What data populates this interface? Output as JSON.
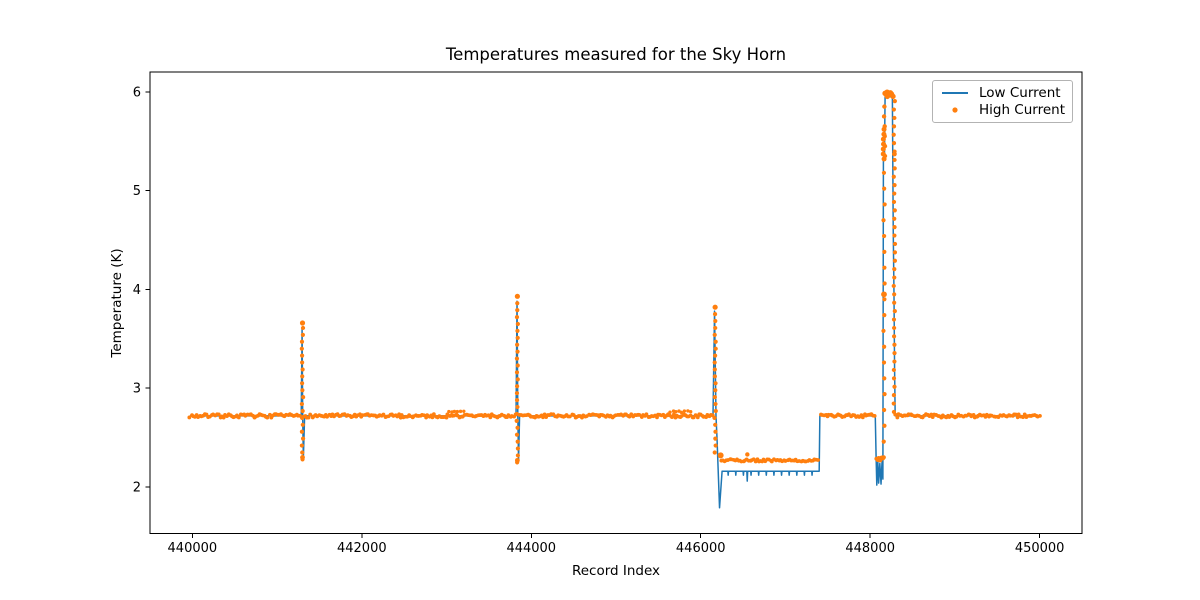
{
  "chart_data": {
    "type": "line+scatter",
    "title": "Temperatures measured for the Sky Horn",
    "xlabel": "Record Index",
    "ylabel": "Temperature (K)",
    "xlim": [
      439500,
      450500
    ],
    "ylim": [
      1.53,
      6.2
    ],
    "xticks": [
      440000,
      442000,
      444000,
      446000,
      448000,
      450000
    ],
    "yticks": [
      2,
      3,
      4,
      5,
      6
    ],
    "grid": false,
    "legend": {
      "position": "upper right",
      "entries": [
        {
          "label": "Low Current",
          "color": "#1f77b4",
          "marker": "line"
        },
        {
          "label": "High Current",
          "color": "#ff7f0e",
          "marker": "dot"
        }
      ]
    },
    "series": [
      {
        "name": "Low Current",
        "type": "line",
        "color": "#1f77b4",
        "linewidth": 1.5,
        "points": [
          [
            439970,
            2.72
          ],
          [
            441285,
            2.72
          ],
          [
            441295,
            3.6
          ],
          [
            441302,
            2.72
          ],
          [
            441310,
            2.29
          ],
          [
            441325,
            2.72
          ],
          [
            443820,
            2.72
          ],
          [
            443832,
            3.88
          ],
          [
            443841,
            2.72
          ],
          [
            443850,
            2.27
          ],
          [
            443862,
            2.72
          ],
          [
            446145,
            2.72
          ],
          [
            446163,
            3.78
          ],
          [
            446180,
            2.72
          ],
          [
            446192,
            2.5
          ],
          [
            446222,
            1.79
          ],
          [
            446252,
            2.16
          ],
          [
            446320,
            2.16
          ],
          [
            446324,
            2.12
          ],
          [
            446328,
            2.16
          ],
          [
            446410,
            2.16
          ],
          [
            446414,
            2.12
          ],
          [
            446418,
            2.16
          ],
          [
            446500,
            2.16
          ],
          [
            446504,
            2.12
          ],
          [
            446508,
            2.16
          ],
          [
            446544,
            2.16
          ],
          [
            446549,
            2.06
          ],
          [
            446554,
            2.16
          ],
          [
            446590,
            2.16
          ],
          [
            446594,
            2.12
          ],
          [
            446598,
            2.16
          ],
          [
            446680,
            2.16
          ],
          [
            446684,
            2.12
          ],
          [
            446688,
            2.16
          ],
          [
            446770,
            2.16
          ],
          [
            446774,
            2.12
          ],
          [
            446778,
            2.16
          ],
          [
            446860,
            2.16
          ],
          [
            446864,
            2.12
          ],
          [
            446868,
            2.16
          ],
          [
            446950,
            2.16
          ],
          [
            446954,
            2.12
          ],
          [
            446958,
            2.16
          ],
          [
            447040,
            2.16
          ],
          [
            447044,
            2.12
          ],
          [
            447048,
            2.16
          ],
          [
            447130,
            2.16
          ],
          [
            447134,
            2.12
          ],
          [
            447138,
            2.16
          ],
          [
            447220,
            2.16
          ],
          [
            447224,
            2.12
          ],
          [
            447228,
            2.16
          ],
          [
            447310,
            2.16
          ],
          [
            447314,
            2.12
          ],
          [
            447318,
            2.16
          ],
          [
            447398,
            2.16
          ],
          [
            447406,
            2.72
          ],
          [
            448060,
            2.72
          ],
          [
            448070,
            2.3
          ],
          [
            448078,
            2.02
          ],
          [
            448090,
            2.26
          ],
          [
            448100,
            2.04
          ],
          [
            448114,
            2.24
          ],
          [
            448128,
            2.03
          ],
          [
            448140,
            2.26
          ],
          [
            448150,
            2.08
          ],
          [
            448156,
            5.3
          ],
          [
            448163,
            5.4
          ],
          [
            448168,
            5.32
          ],
          [
            448176,
            5.95
          ],
          [
            448262,
            5.95
          ],
          [
            448272,
            4.6
          ],
          [
            448281,
            3.95
          ],
          [
            448288,
            3.2
          ],
          [
            448295,
            2.72
          ],
          [
            450006,
            2.72
          ]
        ]
      },
      {
        "name": "High Current",
        "type": "scatter",
        "color": "#ff7f0e",
        "runs": [
          {
            "x0": 439970,
            "x1": 441288,
            "y": 2.72,
            "step": 20,
            "jy": 0.018,
            "r": 1.9
          },
          {
            "x0": 441315,
            "x1": 443815,
            "y": 2.72,
            "step": 20,
            "jy": 0.018,
            "r": 1.9
          },
          {
            "x0": 443030,
            "x1": 443215,
            "y": 2.763,
            "step": 34,
            "jy": 0.008,
            "r": 1.7
          },
          {
            "x0": 443860,
            "x1": 446155,
            "y": 2.72,
            "step": 20,
            "jy": 0.018,
            "r": 1.9
          },
          {
            "x0": 445640,
            "x1": 445895,
            "y": 2.763,
            "step": 34,
            "jy": 0.008,
            "r": 1.7
          },
          {
            "x0": 446245,
            "x1": 447398,
            "y": 2.27,
            "step": 20,
            "jy": 0.012,
            "r": 1.9
          },
          {
            "x0": 447415,
            "x1": 448062,
            "y": 2.72,
            "step": 20,
            "jy": 0.018,
            "r": 1.9
          },
          {
            "x0": 448072,
            "x1": 448158,
            "y": 2.285,
            "step": 12,
            "jy": 0.015,
            "r": 2.0
          },
          {
            "x0": 448298,
            "x1": 450010,
            "y": 2.72,
            "step": 20,
            "jy": 0.018,
            "r": 1.9
          },
          {
            "x0": 448180,
            "x1": 448268,
            "y": 5.97,
            "step": 12,
            "jy": 0.02,
            "r": 2.7
          }
        ],
        "columns": [
          {
            "x": 441300,
            "y0": 2.28,
            "y1": 3.65,
            "step": 0.07,
            "r": 2.1
          },
          {
            "x": 443836,
            "y0": 2.25,
            "y1": 3.92,
            "step": 0.07,
            "r": 2.1
          },
          {
            "x": 446170,
            "y0": 2.35,
            "y1": 3.81,
            "step": 0.07,
            "r": 2.1
          },
          {
            "x": 448163,
            "y0": 2.3,
            "y1": 5.3,
            "step": 0.16,
            "r": 2.1
          },
          {
            "x": 448160,
            "y0": 5.32,
            "y1": 5.62,
            "step": 0.05,
            "r": 2.5
          },
          {
            "x": 448172,
            "y0": 5.35,
            "y1": 5.93,
            "step": 0.1,
            "r": 2.2
          },
          {
            "x": 448286,
            "y0": 2.76,
            "y1": 5.92,
            "step": 0.085,
            "r": 2.1
          }
        ],
        "blobs": [
          [
            441300,
            3.66,
            2.6
          ],
          [
            441300,
            2.3,
            2.4
          ],
          [
            443836,
            3.93,
            2.6
          ],
          [
            443836,
            2.27,
            2.4
          ],
          [
            446170,
            3.82,
            2.6
          ],
          [
            446235,
            2.32,
            3.0
          ],
          [
            446550,
            2.33,
            2.2
          ],
          [
            448163,
            3.95,
            2.9
          ],
          [
            448100,
            2.29,
            2.4
          ],
          [
            448200,
            5.99,
            3.2
          ],
          [
            448235,
            5.98,
            2.9
          ],
          [
            448286,
            5.37,
            2.4
          ]
        ]
      }
    ]
  }
}
